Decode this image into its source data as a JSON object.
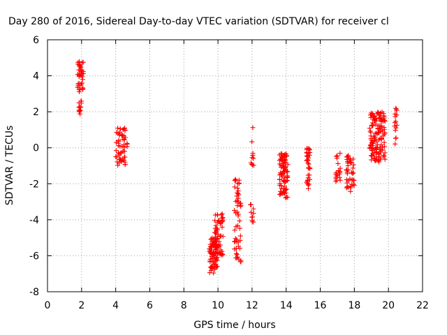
{
  "chart_data": {
    "type": "scatter",
    "title": "Day 280 of 2016, Sidereal Day-to-day VTEC variation (SDTVAR) for receiver cl",
    "xlabel": "GPS time / hours",
    "ylabel": "SDTVAR / TECUs",
    "xlim": [
      0,
      22
    ],
    "ylim": [
      -8,
      6
    ],
    "xticks": [
      0,
      2,
      4,
      6,
      8,
      10,
      12,
      14,
      16,
      18,
      20,
      22
    ],
    "yticks": [
      -8,
      -6,
      -4,
      -2,
      0,
      2,
      4,
      6
    ],
    "grid": true,
    "marker": "plus",
    "color": "#ff0000",
    "clusters": [
      {
        "x": [
          1.75,
          2.1
        ],
        "y": [
          3.0,
          4.9
        ],
        "n": 40
      },
      {
        "x": [
          1.8,
          2.0
        ],
        "y": [
          1.8,
          2.6
        ],
        "n": 12
      },
      {
        "x": [
          4.0,
          4.7
        ],
        "y": [
          -1.0,
          1.1
        ],
        "n": 60
      },
      {
        "x": [
          9.5,
          10.0
        ],
        "y": [
          -7.0,
          -5.0
        ],
        "n": 80
      },
      {
        "x": [
          9.8,
          10.3
        ],
        "y": [
          -6.0,
          -3.6
        ],
        "n": 60
      },
      {
        "x": [
          10.95,
          11.35
        ],
        "y": [
          -6.4,
          -1.7
        ],
        "n": 55
      },
      {
        "x": [
          11.9,
          12.1
        ],
        "y": [
          -4.3,
          -3.1
        ],
        "n": 10
      },
      {
        "x": [
          11.9,
          12.1
        ],
        "y": [
          -1.0,
          1.2
        ],
        "n": 10
      },
      {
        "x": [
          13.6,
          14.1
        ],
        "y": [
          -2.8,
          -0.3
        ],
        "n": 90
      },
      {
        "x": [
          15.2,
          15.4
        ],
        "y": [
          -2.3,
          0.1
        ],
        "n": 35
      },
      {
        "x": [
          16.9,
          17.2
        ],
        "y": [
          -1.9,
          -0.3
        ],
        "n": 20
      },
      {
        "x": [
          17.5,
          18.0
        ],
        "y": [
          -2.5,
          -0.4
        ],
        "n": 45
      },
      {
        "x": [
          18.9,
          19.8
        ],
        "y": [
          -0.8,
          2.0
        ],
        "n": 140
      },
      {
        "x": [
          20.35,
          20.5
        ],
        "y": [
          0.2,
          2.2
        ],
        "n": 15
      }
    ]
  }
}
